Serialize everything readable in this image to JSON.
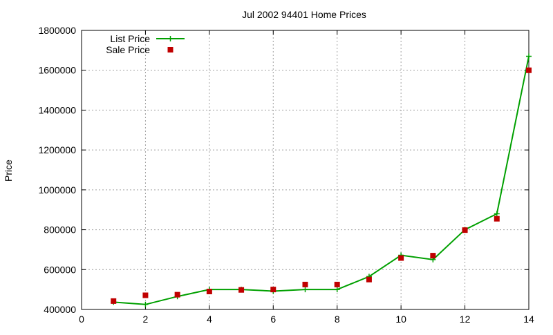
{
  "chart_data": {
    "type": "line",
    "title": "Jul 2002 94401 Home Prices",
    "xlabel": "",
    "ylabel": "Price",
    "xlim": [
      0,
      14
    ],
    "ylim": [
      400000,
      1800000
    ],
    "xticks": [
      "0",
      "2",
      "4",
      "6",
      "8",
      "10",
      "12",
      "14"
    ],
    "yticks": [
      "400000",
      "600000",
      "800000",
      "1000000",
      "1200000",
      "1400000",
      "1600000",
      "1800000"
    ],
    "grid": true,
    "legend_position": "top-left",
    "series": [
      {
        "name": "List Price",
        "style": "line+plus-markers",
        "color": "#00a000",
        "x": [
          1,
          2,
          3,
          4,
          5,
          6,
          7,
          8,
          9,
          10,
          11,
          12,
          13,
          14
        ],
        "y": [
          437000,
          425000,
          465000,
          500000,
          500000,
          492000,
          500000,
          500000,
          565000,
          672000,
          650000,
          800000,
          880000,
          1670000
        ]
      },
      {
        "name": "Sale Price",
        "style": "square-markers",
        "color": "#c00000",
        "x": [
          1,
          2,
          3,
          4,
          5,
          6,
          7,
          8,
          9,
          10,
          11,
          12,
          13,
          14
        ],
        "y": [
          442000,
          471000,
          474000,
          490000,
          498000,
          500000,
          525000,
          525000,
          550000,
          658000,
          670000,
          798000,
          855000,
          1600000
        ]
      }
    ]
  }
}
